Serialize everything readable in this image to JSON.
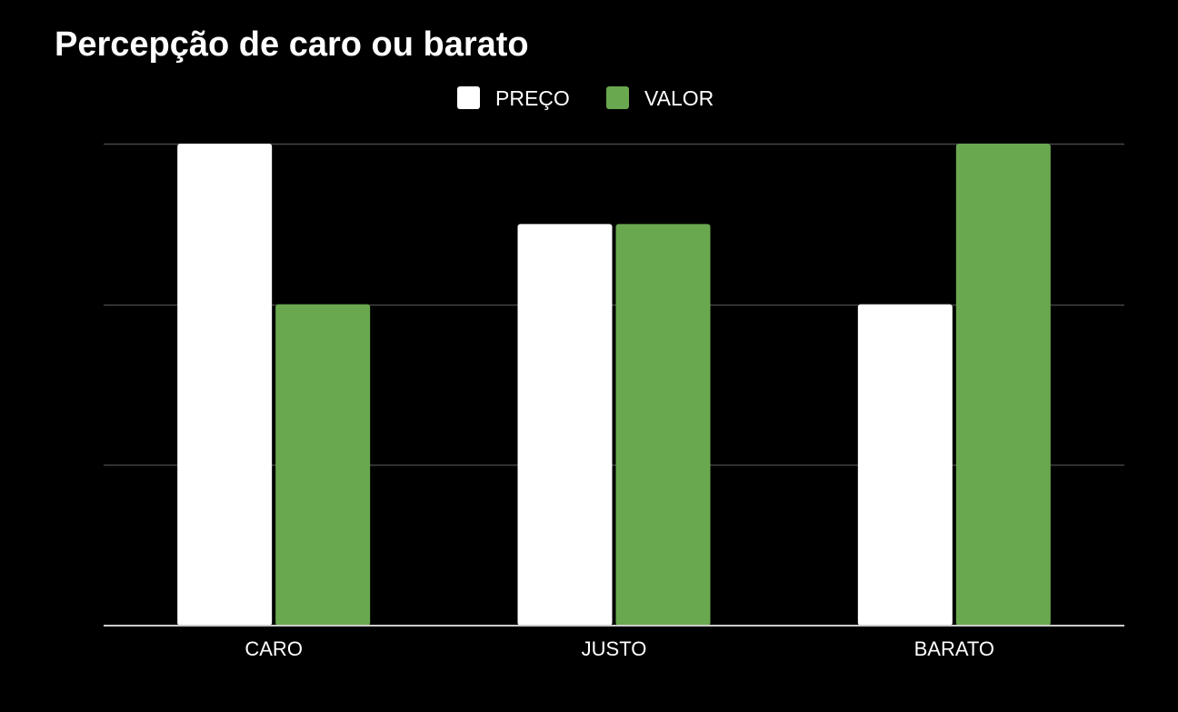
{
  "chart_data": {
    "type": "bar",
    "title": "Percepção de caro ou barato",
    "categories": [
      "CARO",
      "JUSTO",
      "BARATO"
    ],
    "series": [
      {
        "name": "PREÇO",
        "values": [
          3,
          2.5,
          2
        ],
        "color": "#ffffff"
      },
      {
        "name": "VALOR",
        "values": [
          2,
          2.5,
          3
        ],
        "color": "#6aa84f"
      }
    ],
    "ylim": [
      0,
      3
    ],
    "gridlines": [
      1,
      2,
      3
    ],
    "grid": true,
    "legend_position": "top-center",
    "xlabel": "",
    "ylabel": ""
  }
}
